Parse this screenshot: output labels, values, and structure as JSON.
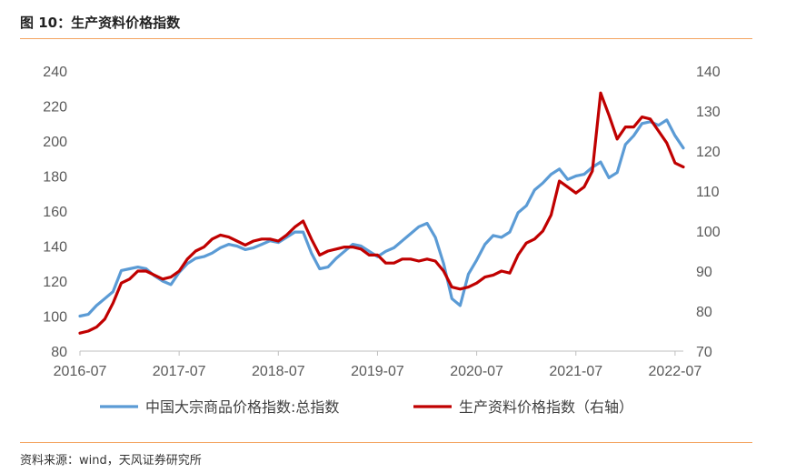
{
  "header": {
    "title": "图 10：生产资料价格指数"
  },
  "footer": {
    "source": "资料来源：wind，天风证券研究所"
  },
  "chart_data": {
    "type": "line",
    "xlabel": "",
    "ylabel": "",
    "x_ticks": [
      "2016-07",
      "2017-07",
      "2018-07",
      "2019-07",
      "2020-07",
      "2021-07",
      "2022-07"
    ],
    "x_range": [
      "2016-07",
      "2022-08"
    ],
    "y_left": {
      "ticks": [
        80,
        100,
        120,
        140,
        160,
        180,
        200,
        220,
        240
      ],
      "ylim": [
        80,
        240
      ]
    },
    "y_right": {
      "ticks": [
        70,
        80,
        90,
        100,
        110,
        120,
        130,
        140
      ],
      "ylim": [
        70,
        140
      ]
    },
    "grid": false,
    "legend_position": "bottom",
    "series": [
      {
        "name": "中国大宗商品价格指数:总指数",
        "axis": "left",
        "color": "#5b9bd5",
        "points": [
          [
            "2016-07-01",
            100
          ],
          [
            "2016-08-01",
            101
          ],
          [
            "2016-09-01",
            106
          ],
          [
            "2016-10-01",
            110
          ],
          [
            "2016-11-01",
            114
          ],
          [
            "2016-12-01",
            126
          ],
          [
            "2017-01-01",
            127
          ],
          [
            "2017-02-01",
            128
          ],
          [
            "2017-03-01",
            127
          ],
          [
            "2017-04-01",
            123
          ],
          [
            "2017-05-01",
            120
          ],
          [
            "2017-06-01",
            118
          ],
          [
            "2017-07-01",
            125
          ],
          [
            "2017-08-01",
            130
          ],
          [
            "2017-09-01",
            133
          ],
          [
            "2017-10-01",
            134
          ],
          [
            "2017-11-01",
            136
          ],
          [
            "2017-12-01",
            139
          ],
          [
            "2018-01-01",
            141
          ],
          [
            "2018-02-01",
            140
          ],
          [
            "2018-03-01",
            138
          ],
          [
            "2018-04-01",
            139
          ],
          [
            "2018-05-01",
            141
          ],
          [
            "2018-06-01",
            143
          ],
          [
            "2018-07-01",
            142
          ],
          [
            "2018-08-01",
            145
          ],
          [
            "2018-09-01",
            148
          ],
          [
            "2018-10-01",
            148
          ],
          [
            "2018-11-01",
            136
          ],
          [
            "2018-12-01",
            127
          ],
          [
            "2019-01-01",
            128
          ],
          [
            "2019-02-01",
            133
          ],
          [
            "2019-03-01",
            137
          ],
          [
            "2019-04-01",
            141
          ],
          [
            "2019-05-01",
            140
          ],
          [
            "2019-06-01",
            137
          ],
          [
            "2019-07-01",
            134
          ],
          [
            "2019-08-01",
            137
          ],
          [
            "2019-09-01",
            139
          ],
          [
            "2019-10-01",
            143
          ],
          [
            "2019-11-01",
            147
          ],
          [
            "2019-12-01",
            151
          ],
          [
            "2020-01-01",
            153
          ],
          [
            "2020-02-01",
            145
          ],
          [
            "2020-03-01",
            130
          ],
          [
            "2020-04-01",
            110
          ],
          [
            "2020-05-01",
            106
          ],
          [
            "2020-06-01",
            124
          ],
          [
            "2020-07-01",
            132
          ],
          [
            "2020-08-01",
            141
          ],
          [
            "2020-09-01",
            146
          ],
          [
            "2020-10-01",
            145
          ],
          [
            "2020-11-01",
            148
          ],
          [
            "2020-12-01",
            159
          ],
          [
            "2021-01-01",
            163
          ],
          [
            "2021-02-01",
            172
          ],
          [
            "2021-03-01",
            176
          ],
          [
            "2021-04-01",
            181
          ],
          [
            "2021-05-01",
            184
          ],
          [
            "2021-06-01",
            178
          ],
          [
            "2021-07-01",
            180
          ],
          [
            "2021-08-01",
            181
          ],
          [
            "2021-09-01",
            185
          ],
          [
            "2021-10-01",
            188
          ],
          [
            "2021-11-01",
            179
          ],
          [
            "2021-12-01",
            182
          ],
          [
            "2022-01-01",
            198
          ],
          [
            "2022-02-01",
            203
          ],
          [
            "2022-03-01",
            210
          ],
          [
            "2022-04-01",
            211
          ],
          [
            "2022-05-01",
            209
          ],
          [
            "2022-06-01",
            212
          ],
          [
            "2022-07-01",
            203
          ],
          [
            "2022-08-01",
            196
          ]
        ]
      },
      {
        "name": "生产资料价格指数（右轴）",
        "axis": "right",
        "color": "#c00000",
        "points": [
          [
            "2016-07-01",
            74.5
          ],
          [
            "2016-08-01",
            75
          ],
          [
            "2016-09-01",
            76
          ],
          [
            "2016-10-01",
            78
          ],
          [
            "2016-11-01",
            82
          ],
          [
            "2016-12-01",
            87
          ],
          [
            "2017-01-01",
            88
          ],
          [
            "2017-02-01",
            90
          ],
          [
            "2017-03-01",
            90
          ],
          [
            "2017-04-01",
            89
          ],
          [
            "2017-05-01",
            88
          ],
          [
            "2017-06-01",
            88.5
          ],
          [
            "2017-07-01",
            90
          ],
          [
            "2017-08-01",
            93
          ],
          [
            "2017-09-01",
            95
          ],
          [
            "2017-10-01",
            96
          ],
          [
            "2017-11-01",
            98
          ],
          [
            "2017-12-01",
            99
          ],
          [
            "2018-01-01",
            98.5
          ],
          [
            "2018-02-01",
            97.5
          ],
          [
            "2018-03-01",
            96.5
          ],
          [
            "2018-04-01",
            97.5
          ],
          [
            "2018-05-01",
            98
          ],
          [
            "2018-06-01",
            98
          ],
          [
            "2018-07-01",
            97.5
          ],
          [
            "2018-08-01",
            99
          ],
          [
            "2018-09-01",
            101
          ],
          [
            "2018-10-01",
            102.5
          ],
          [
            "2018-11-01",
            98
          ],
          [
            "2018-12-01",
            94
          ],
          [
            "2019-01-01",
            95
          ],
          [
            "2019-02-01",
            95.5
          ],
          [
            "2019-03-01",
            96
          ],
          [
            "2019-04-01",
            96
          ],
          [
            "2019-05-01",
            95.5
          ],
          [
            "2019-06-01",
            94
          ],
          [
            "2019-07-01",
            94
          ],
          [
            "2019-08-01",
            92
          ],
          [
            "2019-09-01",
            92
          ],
          [
            "2019-10-01",
            93
          ],
          [
            "2019-11-01",
            93
          ],
          [
            "2019-12-01",
            92.5
          ],
          [
            "2020-01-01",
            93
          ],
          [
            "2020-02-01",
            92.5
          ],
          [
            "2020-03-01",
            90
          ],
          [
            "2020-04-01",
            86
          ],
          [
            "2020-05-01",
            85.5
          ],
          [
            "2020-06-01",
            86
          ],
          [
            "2020-07-01",
            87
          ],
          [
            "2020-08-01",
            88.5
          ],
          [
            "2020-09-01",
            89
          ],
          [
            "2020-10-01",
            90
          ],
          [
            "2020-11-01",
            89.5
          ],
          [
            "2020-12-01",
            94
          ],
          [
            "2021-01-01",
            97
          ],
          [
            "2021-02-01",
            98
          ],
          [
            "2021-03-01",
            100
          ],
          [
            "2021-04-01",
            104
          ],
          [
            "2021-05-01",
            112.5
          ],
          [
            "2021-06-01",
            111
          ],
          [
            "2021-07-01",
            109.5
          ],
          [
            "2021-08-01",
            111
          ],
          [
            "2021-09-01",
            115
          ],
          [
            "2021-10-01",
            134.5
          ],
          [
            "2021-11-01",
            129
          ],
          [
            "2021-12-01",
            123
          ],
          [
            "2022-01-01",
            126
          ],
          [
            "2022-02-01",
            126
          ],
          [
            "2022-03-01",
            128.5
          ],
          [
            "2022-04-01",
            128
          ],
          [
            "2022-05-01",
            125
          ],
          [
            "2022-06-01",
            122
          ],
          [
            "2022-07-01",
            117
          ],
          [
            "2022-08-01",
            116
          ]
        ]
      }
    ]
  }
}
